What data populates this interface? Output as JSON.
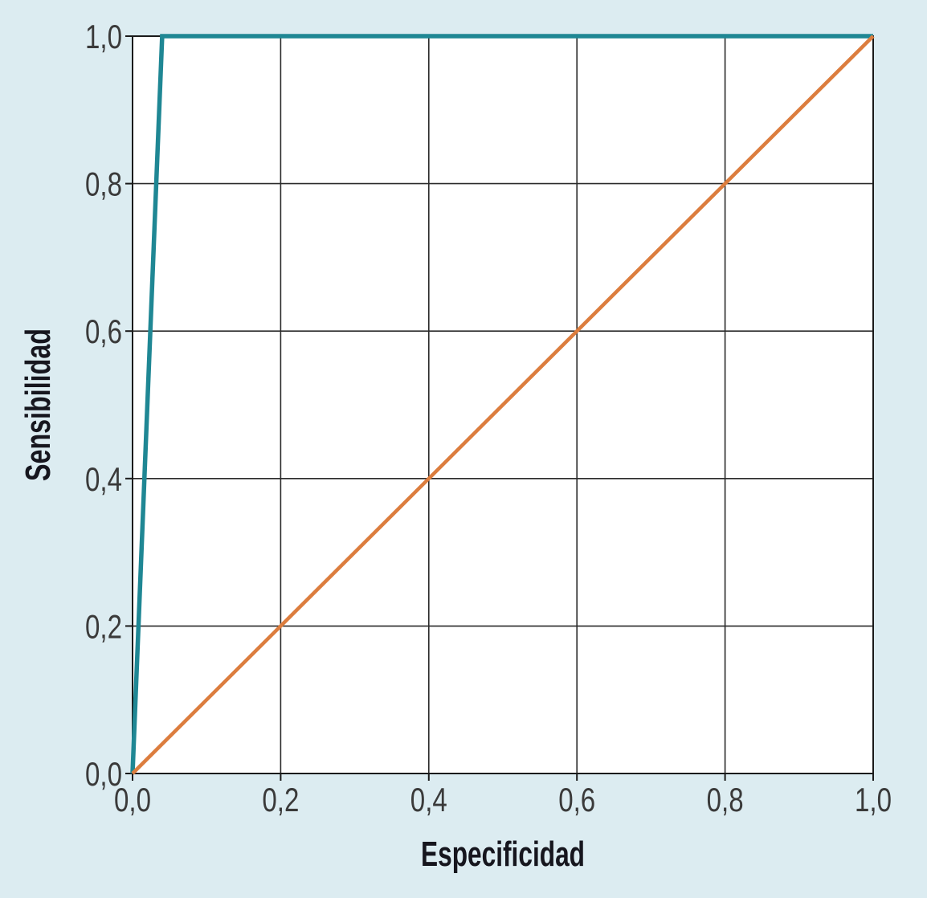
{
  "page": {
    "background": "#dcecf1"
  },
  "chart_data": {
    "type": "line",
    "xlabel": "Especificidad",
    "ylabel": "Sensibilidad",
    "xlim": [
      0,
      1
    ],
    "ylim": [
      0,
      1
    ],
    "grid": true,
    "legend": "none",
    "xticks": {
      "values": [
        0,
        0.2,
        0.4,
        0.6,
        0.8,
        1.0
      ],
      "labels": [
        "0,0",
        "0,2",
        "0,4",
        "0,6",
        "0,8",
        "1,0"
      ]
    },
    "yticks": {
      "values": [
        0,
        0.2,
        0.4,
        0.6,
        0.8,
        1.0
      ],
      "labels": [
        "0,0",
        "0,2",
        "0,4",
        "0,6",
        "0,8",
        "1,0"
      ]
    },
    "series": [
      {
        "name": "roc-curve",
        "color": "#1f8794",
        "stroke_width": 5.5,
        "points": [
          [
            0,
            0
          ],
          [
            0.04,
            1.0
          ],
          [
            1.0,
            1.0
          ]
        ]
      },
      {
        "name": "reference-diagonal",
        "color": "#dc7d3e",
        "stroke_width": 4.5,
        "points": [
          [
            0,
            0
          ],
          [
            1.0,
            1.0
          ]
        ]
      }
    ],
    "colors": {
      "plot_background": "#ffffff",
      "grid": "#2b2b2b",
      "frame": "#1a1a1a",
      "tick_label": "#3a3a3a",
      "axis_label": "#16161e"
    }
  }
}
